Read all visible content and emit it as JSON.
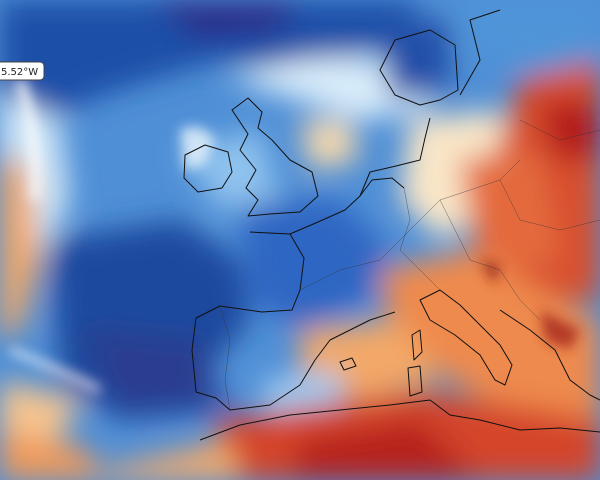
{
  "map": {
    "coordinate_label": "5.52°W"
  }
}
